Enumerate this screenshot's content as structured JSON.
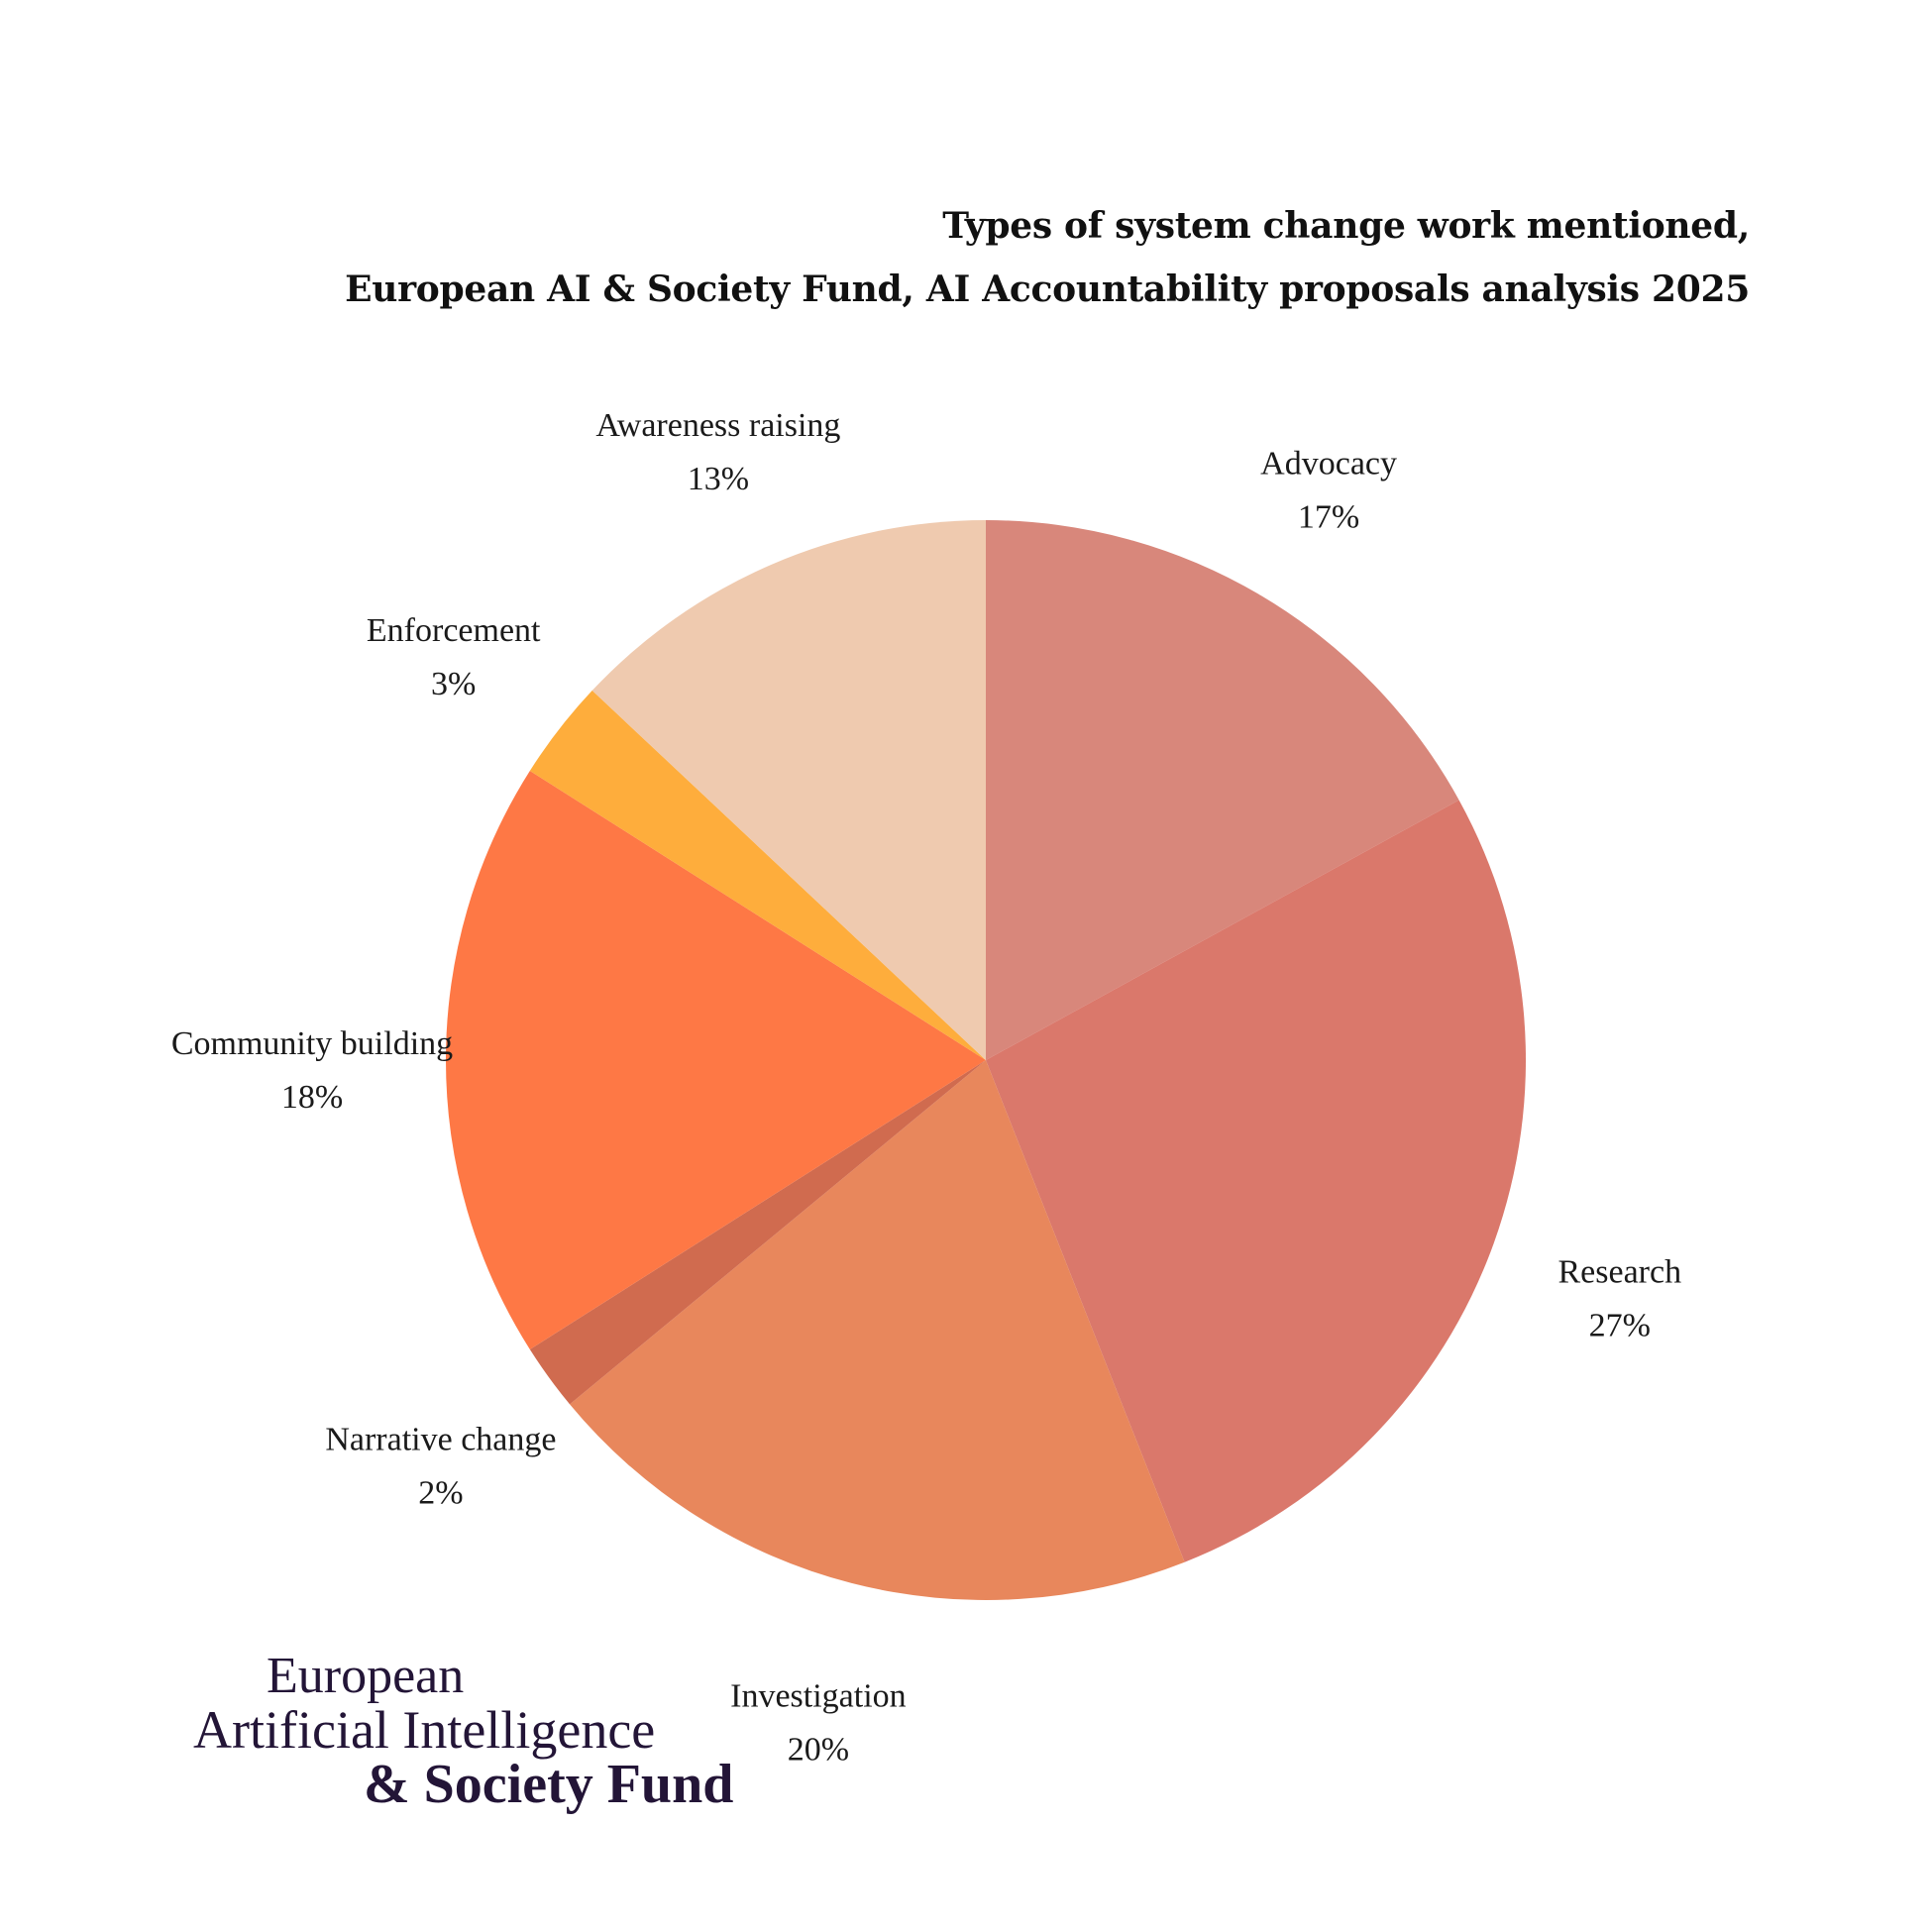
{
  "chart_data": {
    "type": "pie",
    "title": "Types of system change work mentioned,",
    "subtitle": "European AI & Society Fund, AI Accountability proposals analysis 2025",
    "slices": [
      {
        "name": "Advocacy",
        "value": 17,
        "label": "17%",
        "color": "#D8877B"
      },
      {
        "name": "Research",
        "value": 27,
        "label": "27%",
        "color": "#DA786B"
      },
      {
        "name": "Investigation",
        "value": 20,
        "label": "20%",
        "color": "#E8875C"
      },
      {
        "name": "Narrative change",
        "value": 2,
        "label": "2%",
        "color": "#D06B4F"
      },
      {
        "name": "Community building",
        "value": 18,
        "label": "18%",
        "color": "#FE7845"
      },
      {
        "name": "Enforcement",
        "value": 3,
        "label": "3%",
        "color": "#FEAD3C"
      },
      {
        "name": "Awareness raising",
        "value": 13,
        "label": "13%",
        "color": "#EFCAAF"
      }
    ]
  },
  "logo": {
    "line1": "European",
    "line2": "Artificial Intelligence",
    "line3": "& Society Fund"
  }
}
